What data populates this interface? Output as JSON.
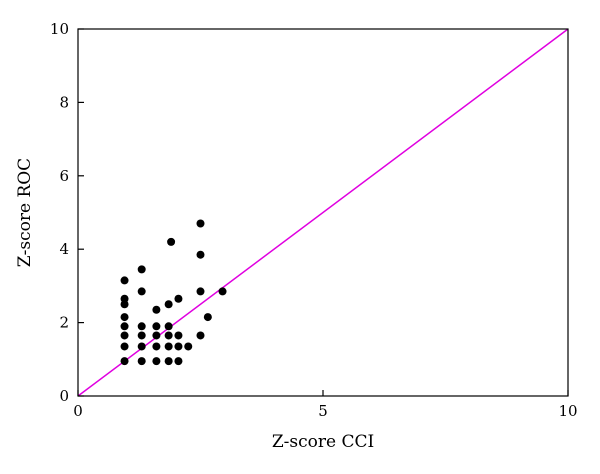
{
  "chart_data": {
    "type": "scatter",
    "title": "",
    "xlabel": "Z-score CCI",
    "ylabel": "Z-score ROC",
    "xlim": [
      0,
      10
    ],
    "ylim": [
      0,
      10
    ],
    "x_ticks": [
      {
        "value": 0,
        "label": "0"
      },
      {
        "value": 5,
        "label": "5"
      },
      {
        "value": 10,
        "label": "10"
      }
    ],
    "y_ticks": [
      {
        "value": 0,
        "label": "0"
      },
      {
        "value": 2,
        "label": "2"
      },
      {
        "value": 4,
        "label": "4"
      },
      {
        "value": 6,
        "label": "6"
      },
      {
        "value": 8,
        "label": "8"
      },
      {
        "value": 10,
        "label": "10"
      }
    ],
    "grid": false,
    "legend": "none",
    "colors": {
      "points": "#000000",
      "reference_line": "#e000e0",
      "frame": "#000000"
    },
    "reference_line": {
      "x": [
        0,
        10
      ],
      "y": [
        0,
        10
      ]
    },
    "points": [
      {
        "x": 0.95,
        "y": 0.95
      },
      {
        "x": 0.95,
        "y": 1.35
      },
      {
        "x": 0.95,
        "y": 1.65
      },
      {
        "x": 0.95,
        "y": 1.9
      },
      {
        "x": 0.95,
        "y": 2.15
      },
      {
        "x": 0.95,
        "y": 2.5
      },
      {
        "x": 0.95,
        "y": 2.65
      },
      {
        "x": 0.95,
        "y": 3.15
      },
      {
        "x": 1.3,
        "y": 0.95
      },
      {
        "x": 1.3,
        "y": 1.35
      },
      {
        "x": 1.3,
        "y": 1.65
      },
      {
        "x": 1.3,
        "y": 1.9
      },
      {
        "x": 1.3,
        "y": 2.85
      },
      {
        "x": 1.3,
        "y": 3.45
      },
      {
        "x": 1.6,
        "y": 0.95
      },
      {
        "x": 1.6,
        "y": 1.35
      },
      {
        "x": 1.6,
        "y": 1.65
      },
      {
        "x": 1.6,
        "y": 1.9
      },
      {
        "x": 1.6,
        "y": 2.35
      },
      {
        "x": 1.85,
        "y": 0.95
      },
      {
        "x": 1.85,
        "y": 1.35
      },
      {
        "x": 1.85,
        "y": 1.65
      },
      {
        "x": 1.85,
        "y": 1.9
      },
      {
        "x": 1.85,
        "y": 2.5
      },
      {
        "x": 1.9,
        "y": 4.2
      },
      {
        "x": 2.05,
        "y": 0.95
      },
      {
        "x": 2.05,
        "y": 1.35
      },
      {
        "x": 2.05,
        "y": 1.65
      },
      {
        "x": 2.05,
        "y": 2.65
      },
      {
        "x": 2.25,
        "y": 1.35
      },
      {
        "x": 2.5,
        "y": 1.65
      },
      {
        "x": 2.5,
        "y": 2.85
      },
      {
        "x": 2.5,
        "y": 3.85
      },
      {
        "x": 2.5,
        "y": 4.7
      },
      {
        "x": 2.65,
        "y": 2.15
      },
      {
        "x": 2.95,
        "y": 2.85
      }
    ]
  }
}
